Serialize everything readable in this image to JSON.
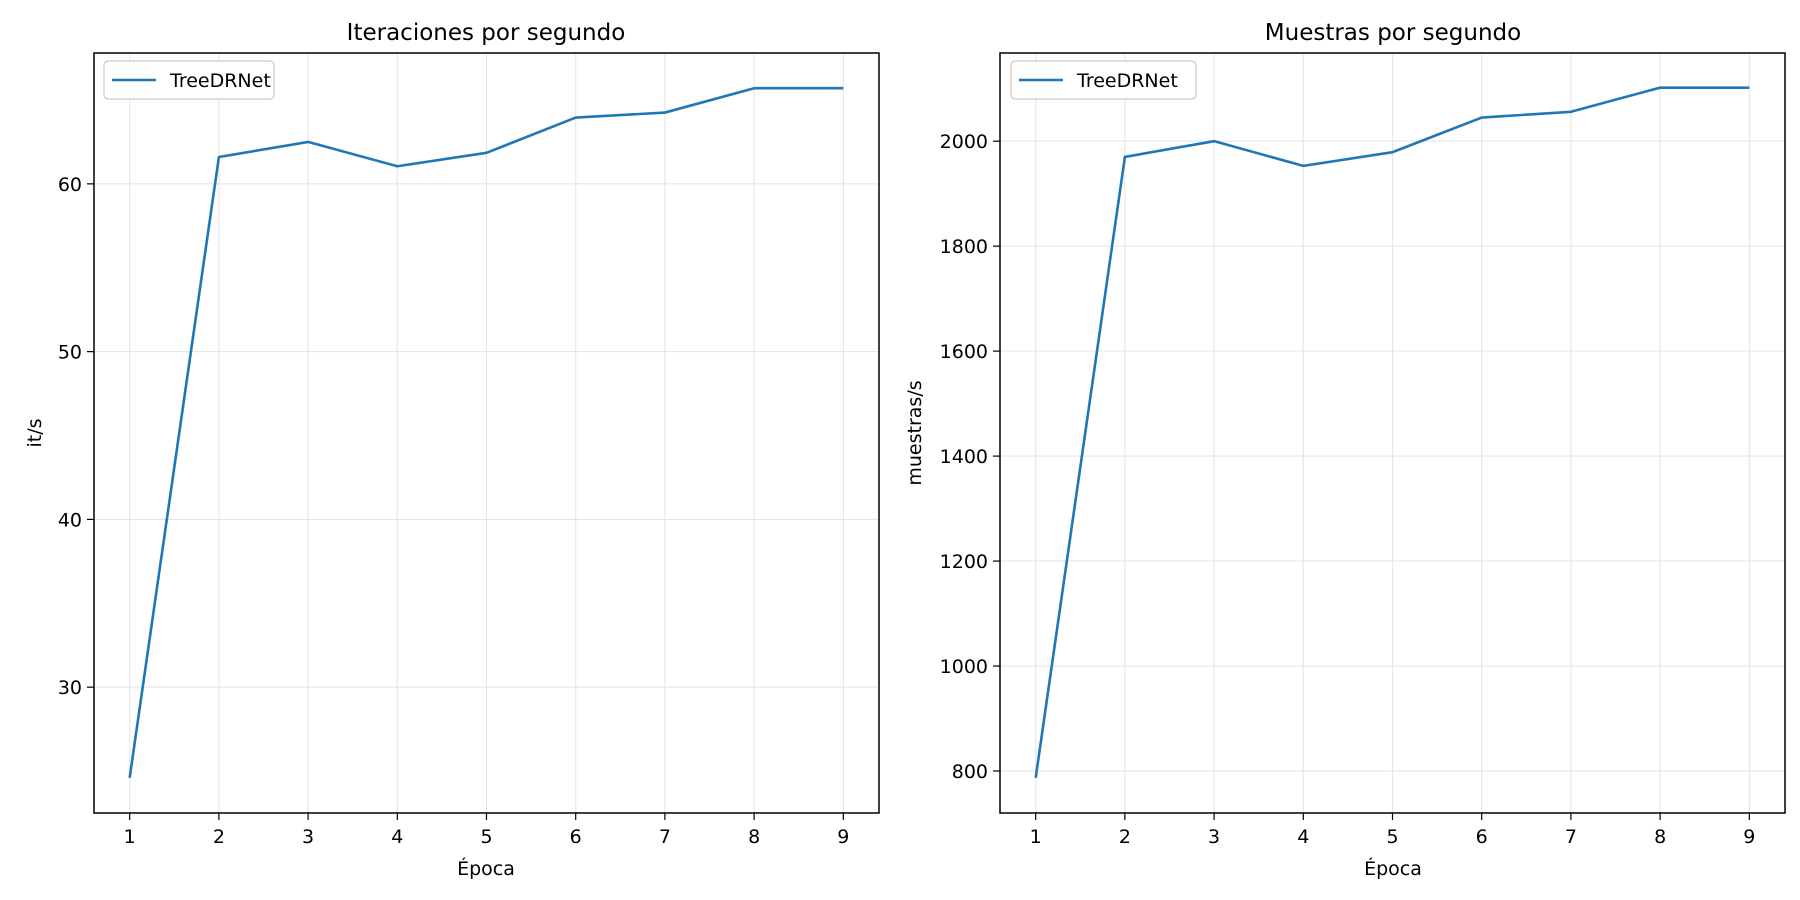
{
  "chart_data": [
    {
      "type": "line",
      "title": "Iteraciones por segundo",
      "xlabel": "Época",
      "ylabel": "it/s",
      "x": [
        1,
        2,
        3,
        4,
        5,
        6,
        7,
        8,
        9
      ],
      "xticks": [
        1,
        2,
        3,
        4,
        5,
        6,
        7,
        8,
        9
      ],
      "yticks": [
        30,
        40,
        50,
        60
      ],
      "xlim": [
        0.6,
        9.4
      ],
      "ylim": [
        22.5,
        67.8
      ],
      "grid": true,
      "legend_position": "top-left",
      "series": [
        {
          "name": "TreeDRNet",
          "color": "#1f77b4",
          "values": [
            24.6,
            61.6,
            62.5,
            61.05,
            61.85,
            63.95,
            64.25,
            65.7,
            65.7
          ]
        }
      ]
    },
    {
      "type": "line",
      "title": "Muestras por segundo",
      "xlabel": "Época",
      "ylabel": "muestras/s",
      "x": [
        1,
        2,
        3,
        4,
        5,
        6,
        7,
        8,
        9
      ],
      "xticks": [
        1,
        2,
        3,
        4,
        5,
        6,
        7,
        8,
        9
      ],
      "yticks": [
        800,
        1000,
        1200,
        1400,
        1600,
        1800,
        2000
      ],
      "xlim": [
        0.6,
        9.4
      ],
      "ylim": [
        720,
        2168
      ],
      "grid": true,
      "legend_position": "top-left",
      "series": [
        {
          "name": "TreeDRNet",
          "color": "#1f77b4",
          "values": [
            787,
            1970,
            2000,
            1953,
            1979,
            2045,
            2056,
            2102,
            2102
          ]
        }
      ]
    }
  ]
}
